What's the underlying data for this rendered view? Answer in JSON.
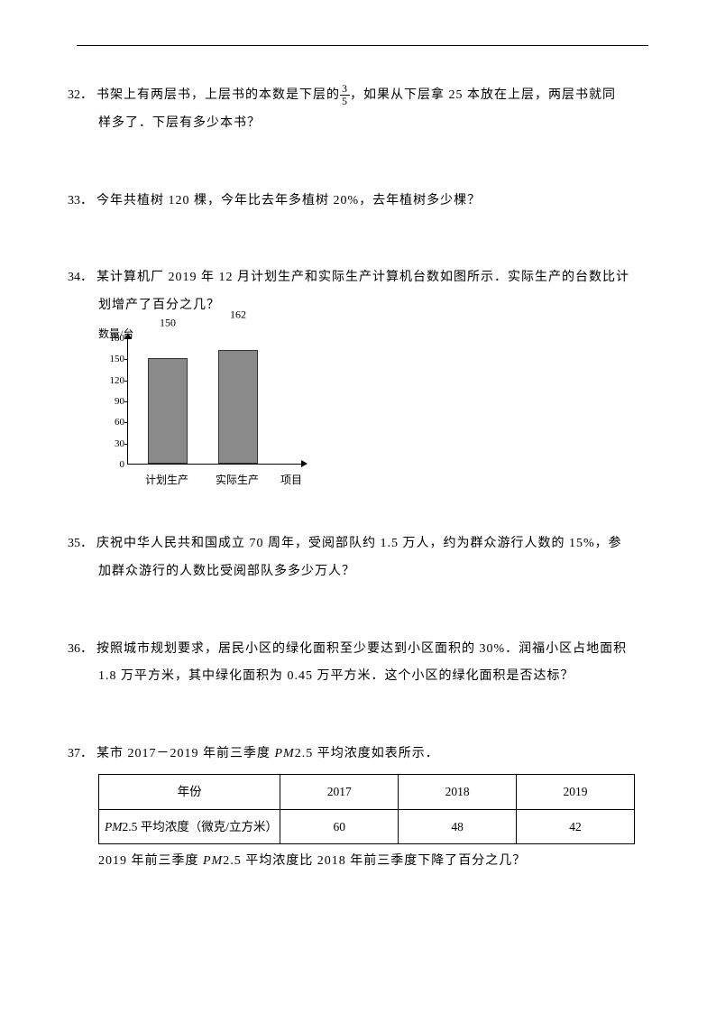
{
  "q32": {
    "num": "32．",
    "line1_a": "书架上有两层书，上层书的本数是下层的",
    "frac_num": "3",
    "frac_den": "5",
    "line1_b": "，如果从下层拿 25 本放在上层，两层书就同",
    "line2": "样多了．下层有多少本书？"
  },
  "q33": {
    "num": "33．",
    "text": "今年共植树 120 棵，今年比去年多植树 20%，去年植树多少棵？"
  },
  "q34": {
    "num": "34．",
    "line1": "某计算机厂 2019 年 12 月计划生产和实际生产计算机台数如图所示．实际生产的台数比计",
    "line2": "划增产了百分之几？",
    "chart": {
      "y_title": "数量/台",
      "y_max": 180,
      "y_step": 30,
      "ticks": [
        180,
        150,
        120,
        90,
        60,
        30,
        0
      ],
      "bars": [
        {
          "label": "计划生产",
          "value": 150,
          "value_text": "150",
          "color": "#8a8a8a"
        },
        {
          "label": "实际生产",
          "value": 162,
          "value_text": "162",
          "color": "#8a8a8a"
        }
      ],
      "x_title": "项目"
    }
  },
  "q35": {
    "num": "35．",
    "line1": "庆祝中华人民共和国成立 70 周年，受阅部队约 1.5 万人，约为群众游行人数的 15%，参",
    "line2": "加群众游行的人数比受阅部队多多少万人？"
  },
  "q36": {
    "num": "36．",
    "line1": "按照城市规划要求，居民小区的绿化面积至少要达到小区面积的 30%．润福小区占地面积",
    "line2": "1.8 万平方米，其中绿化面积为 0.45 万平方米．这个小区的绿化面积是否达标？"
  },
  "q37": {
    "num": "37．",
    "intro_a": "某市 2017－2019 年前三季度 ",
    "intro_pm": "PM",
    "intro_b": "2.5 平均浓度如表所示．",
    "table": {
      "header": [
        "年份",
        "2017",
        "2018",
        "2019"
      ],
      "row_label_pm": "PM",
      "row_label_rest": "2.5 平均浓度（微克/立方米）",
      "values": [
        "60",
        "48",
        "42"
      ]
    },
    "after_a": "2019 年前三季度 ",
    "after_pm": "PM",
    "after_b": "2.5 平均浓度比 2018 年前三季度下降了百分之几？"
  }
}
